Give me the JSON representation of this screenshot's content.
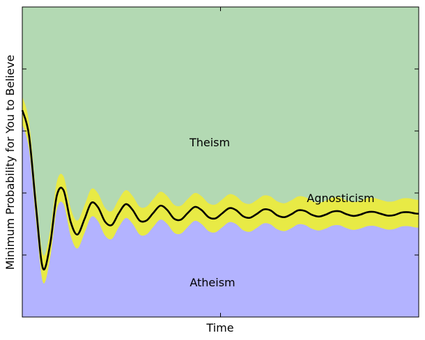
{
  "chart_data": {
    "type": "area",
    "title": "",
    "xlabel": "Time",
    "ylabel": "Minimum Probability for You to Believe",
    "x_ticks_labeled": false,
    "y_ticks_labeled": false,
    "grid": false,
    "xlim": [
      0,
      1
    ],
    "ylim": [
      0,
      1
    ],
    "regions": [
      {
        "label": "Theism",
        "color": "#b3d9b3"
      },
      {
        "label": "Agnosticism",
        "color": "#e8ea45"
      },
      {
        "label": "Atheism",
        "color": "#b3b3ff"
      }
    ],
    "series": [
      {
        "x": [
          0.0,
          0.017,
          0.035,
          0.052,
          0.07,
          0.087,
          0.104,
          0.122,
          0.139,
          0.157,
          0.174,
          0.191,
          0.209,
          0.226,
          0.243,
          0.261,
          0.278,
          0.296,
          0.313,
          0.33,
          0.348,
          0.365,
          0.383,
          0.4,
          0.417,
          0.435,
          0.452,
          0.47,
          0.487,
          0.504,
          0.522,
          0.539,
          0.557,
          0.574,
          0.591,
          0.609,
          0.626,
          0.643,
          0.661,
          0.678,
          0.696,
          0.713,
          0.73,
          0.748,
          0.765,
          0.783,
          0.8,
          0.817,
          0.835,
          0.852,
          0.87,
          0.887,
          0.904,
          0.922,
          0.939,
          0.957,
          0.974,
          0.991,
          1.0
        ],
        "values": [
          0.667,
          0.585,
          0.35,
          0.157,
          0.233,
          0.391,
          0.409,
          0.307,
          0.266,
          0.316,
          0.368,
          0.354,
          0.307,
          0.297,
          0.334,
          0.364,
          0.346,
          0.311,
          0.311,
          0.335,
          0.359,
          0.346,
          0.317,
          0.314,
          0.335,
          0.355,
          0.345,
          0.322,
          0.318,
          0.334,
          0.351,
          0.345,
          0.325,
          0.32,
          0.332,
          0.347,
          0.344,
          0.328,
          0.322,
          0.331,
          0.344,
          0.342,
          0.33,
          0.324,
          0.33,
          0.34,
          0.341,
          0.332,
          0.326,
          0.33,
          0.338,
          0.339,
          0.333,
          0.327,
          0.329,
          0.337,
          0.338,
          0.334,
          0.333
        ]
      }
    ]
  }
}
